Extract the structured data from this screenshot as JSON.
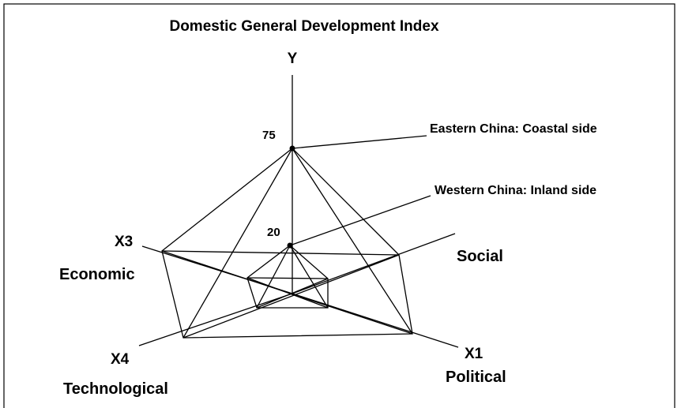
{
  "title": "Domestic General Development Index",
  "axes": {
    "y": "Y",
    "x1": "X1",
    "x3": "X3",
    "x4": "X4"
  },
  "dimensions": {
    "social": "Social",
    "economic": "Economic",
    "technological": "Technological",
    "political": "Political"
  },
  "levels": {
    "outer": "75",
    "inner": "20"
  },
  "annotations": {
    "outer": "Eastern China: Coastal side",
    "inner": "Western China: Inland side"
  }
}
